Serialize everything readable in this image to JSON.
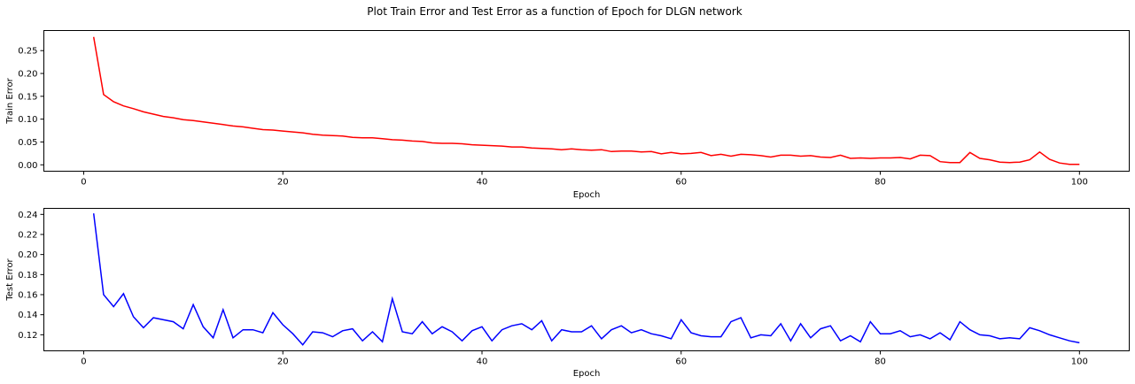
{
  "figure": {
    "suptitle": "Plot Train Error and Test Error as a function of Epoch for DLGN network"
  },
  "chart_data": [
    {
      "type": "line",
      "xlabel": "Epoch",
      "ylabel": "Train Error",
      "xlim": [
        -4,
        105
      ],
      "ylim": [
        -0.014,
        0.294
      ],
      "xticks": [
        0,
        20,
        40,
        60,
        80,
        100
      ],
      "xtick_labels": [
        "0",
        "20",
        "40",
        "60",
        "80",
        "100"
      ],
      "yticks": [
        0.0,
        0.05,
        0.1,
        0.15,
        0.2,
        0.25
      ],
      "ytick_labels": [
        "0.00",
        "0.05",
        "0.10",
        "0.15",
        "0.20",
        "0.25"
      ],
      "grid": false,
      "series": [
        {
          "color": "#ff0000",
          "x": [
            1,
            2,
            3,
            4,
            5,
            6,
            7,
            8,
            9,
            10,
            11,
            12,
            13,
            14,
            15,
            16,
            17,
            18,
            19,
            20,
            21,
            22,
            23,
            24,
            25,
            26,
            27,
            28,
            29,
            30,
            31,
            32,
            33,
            34,
            35,
            36,
            37,
            38,
            39,
            40,
            41,
            42,
            43,
            44,
            45,
            46,
            47,
            48,
            49,
            50,
            51,
            52,
            53,
            54,
            55,
            56,
            57,
            58,
            59,
            60,
            61,
            62,
            63,
            64,
            65,
            66,
            67,
            68,
            69,
            70,
            71,
            72,
            73,
            74,
            75,
            76,
            77,
            78,
            79,
            80,
            81,
            82,
            83,
            84,
            85,
            86,
            87,
            88,
            89,
            90,
            91,
            92,
            93,
            94,
            95,
            96,
            97,
            98,
            99,
            100
          ],
          "values": [
            0.28,
            0.154,
            0.138,
            0.129,
            0.123,
            0.116,
            0.111,
            0.106,
            0.103,
            0.099,
            0.097,
            0.094,
            0.091,
            0.088,
            0.085,
            0.083,
            0.08,
            0.077,
            0.076,
            0.074,
            0.072,
            0.07,
            0.067,
            0.065,
            0.064,
            0.063,
            0.06,
            0.059,
            0.059,
            0.057,
            0.055,
            0.054,
            0.052,
            0.051,
            0.048,
            0.047,
            0.047,
            0.046,
            0.044,
            0.043,
            0.042,
            0.041,
            0.039,
            0.039,
            0.037,
            0.036,
            0.035,
            0.033,
            0.035,
            0.033,
            0.032,
            0.033,
            0.029,
            0.03,
            0.03,
            0.028,
            0.029,
            0.024,
            0.027,
            0.024,
            0.025,
            0.027,
            0.02,
            0.023,
            0.019,
            0.023,
            0.022,
            0.02,
            0.017,
            0.021,
            0.021,
            0.019,
            0.02,
            0.017,
            0.016,
            0.021,
            0.014,
            0.015,
            0.014,
            0.015,
            0.015,
            0.016,
            0.013,
            0.021,
            0.02,
            0.007,
            0.005,
            0.005,
            0.027,
            0.014,
            0.011,
            0.006,
            0.005,
            0.006,
            0.011,
            0.028,
            0.012,
            0.004,
            0.001,
            0.001
          ]
        }
      ]
    },
    {
      "type": "line",
      "xlabel": "Epoch",
      "ylabel": "Test Error",
      "xlim": [
        -4,
        105
      ],
      "ylim": [
        0.104,
        0.246
      ],
      "xticks": [
        0,
        20,
        40,
        60,
        80,
        100
      ],
      "xtick_labels": [
        "0",
        "20",
        "40",
        "60",
        "80",
        "100"
      ],
      "yticks": [
        0.12,
        0.14,
        0.16,
        0.18,
        0.2,
        0.22,
        0.24
      ],
      "ytick_labels": [
        "0.12",
        "0.14",
        "0.16",
        "0.18",
        "0.20",
        "0.22",
        "0.24"
      ],
      "grid": false,
      "series": [
        {
          "color": "#0000ff",
          "x": [
            1,
            2,
            3,
            4,
            5,
            6,
            7,
            8,
            9,
            10,
            11,
            12,
            13,
            14,
            15,
            16,
            17,
            18,
            19,
            20,
            21,
            22,
            23,
            24,
            25,
            26,
            27,
            28,
            29,
            30,
            31,
            32,
            33,
            34,
            35,
            36,
            37,
            38,
            39,
            40,
            41,
            42,
            43,
            44,
            45,
            46,
            47,
            48,
            49,
            50,
            51,
            52,
            53,
            54,
            55,
            56,
            57,
            58,
            59,
            60,
            61,
            62,
            63,
            64,
            65,
            66,
            67,
            68,
            69,
            70,
            71,
            72,
            73,
            74,
            75,
            76,
            77,
            78,
            79,
            80,
            81,
            82,
            83,
            84,
            85,
            86,
            87,
            88,
            89,
            90,
            91,
            92,
            93,
            94,
            95,
            96,
            97,
            98,
            99,
            100
          ],
          "values": [
            0.241,
            0.16,
            0.148,
            0.161,
            0.138,
            0.127,
            0.137,
            0.135,
            0.133,
            0.126,
            0.15,
            0.128,
            0.117,
            0.145,
            0.117,
            0.125,
            0.125,
            0.122,
            0.142,
            0.13,
            0.121,
            0.11,
            0.123,
            0.122,
            0.118,
            0.124,
            0.126,
            0.114,
            0.123,
            0.113,
            0.156,
            0.123,
            0.121,
            0.133,
            0.121,
            0.128,
            0.123,
            0.114,
            0.124,
            0.128,
            0.114,
            0.125,
            0.129,
            0.131,
            0.125,
            0.134,
            0.114,
            0.125,
            0.123,
            0.123,
            0.129,
            0.116,
            0.125,
            0.129,
            0.122,
            0.125,
            0.121,
            0.119,
            0.116,
            0.135,
            0.122,
            0.119,
            0.118,
            0.118,
            0.133,
            0.137,
            0.117,
            0.12,
            0.119,
            0.131,
            0.114,
            0.131,
            0.117,
            0.126,
            0.129,
            0.114,
            0.119,
            0.113,
            0.133,
            0.121,
            0.121,
            0.124,
            0.118,
            0.12,
            0.116,
            0.122,
            0.115,
            0.133,
            0.125,
            0.12,
            0.119,
            0.116,
            0.117,
            0.116,
            0.127,
            0.124,
            0.12,
            0.117,
            0.114,
            0.112
          ]
        }
      ]
    }
  ]
}
